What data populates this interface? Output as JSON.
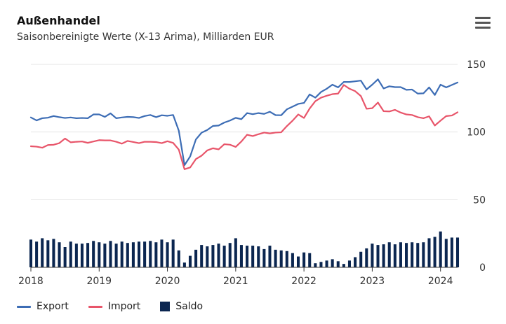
{
  "header": {
    "title": "Außenhandel",
    "subtitle": "Saisonbereinigte Werte (X-13 Arima), Milliarden EUR",
    "menu_icon": "hamburger-menu-icon"
  },
  "legend": {
    "export_label": "Export",
    "import_label": "Import",
    "saldo_label": "Saldo"
  },
  "colors": {
    "export": "#3d6db5",
    "import": "#e8556a",
    "saldo": "#0b2650",
    "grid": "#e4e4e4",
    "axis": "#333333"
  },
  "chart_data": {
    "type": "line",
    "x_start": "2018-01",
    "x_end": "2024-04",
    "x_unit": "month",
    "xticks": [
      "2018",
      "2019",
      "2020",
      "2021",
      "2022",
      "2023",
      "2024"
    ],
    "yticks": [
      0,
      50,
      100,
      150
    ],
    "ylim": [
      0,
      150
    ],
    "y_axis_side": "right",
    "grid": true,
    "legend_position": "bottom-left",
    "title": "Außenhandel",
    "subtitle": "Saisonbereinigte Werte (X-13 Arima), Milliarden EUR",
    "series": [
      {
        "name": "Export",
        "type": "line",
        "values": [
          110.8,
          108.6,
          110.2,
          110.6,
          111.8,
          111.0,
          110.4,
          110.8,
          110.2,
          110.4,
          110.2,
          113.0,
          113.0,
          111.2,
          113.8,
          110.2,
          110.8,
          111.2,
          111.0,
          110.4,
          111.8,
          112.6,
          111.0,
          112.4,
          112.0,
          112.6,
          101.0,
          75.5,
          82.0,
          94.5,
          99.5,
          101.5,
          104.5,
          104.8,
          107.0,
          108.5,
          110.5,
          109.5,
          114.0,
          113.2,
          114.0,
          113.4,
          115.0,
          112.5,
          112.4,
          116.8,
          118.8,
          120.8,
          121.5,
          127.8,
          125.4,
          129.6,
          132.0,
          135.0,
          133.0,
          137.0,
          137.0,
          137.5,
          138.0,
          131.5,
          135.0,
          139.0,
          132.2,
          133.8,
          133.2,
          133.2,
          131.2,
          131.4,
          128.4,
          128.6,
          133.0,
          127.4,
          135.0,
          133.0,
          134.8,
          136.6
        ]
      },
      {
        "name": "Import",
        "type": "line",
        "values": [
          89.5,
          89.2,
          88.4,
          90.4,
          90.6,
          91.8,
          95.2,
          92.4,
          92.8,
          93.0,
          92.0,
          93.0,
          94.0,
          93.8,
          93.8,
          92.8,
          91.4,
          93.4,
          92.6,
          91.8,
          92.8,
          92.8,
          92.6,
          91.8,
          93.2,
          92.0,
          87.0,
          72.5,
          73.8,
          80.0,
          82.5,
          86.4,
          88.0,
          87.2,
          91.0,
          90.6,
          89.0,
          93.0,
          98.0,
          97.0,
          98.4,
          99.6,
          99.0,
          99.6,
          99.8,
          104.4,
          108.4,
          113.0,
          110.4,
          117.4,
          122.8,
          125.4,
          126.8,
          128.0,
          128.4,
          134.8,
          132.0,
          130.2,
          126.6,
          117.2,
          117.6,
          121.8,
          115.4,
          115.2,
          116.4,
          114.4,
          113.0,
          112.6,
          111.0,
          110.2,
          111.6,
          104.8,
          108.4,
          111.8,
          112.2,
          114.6
        ]
      },
      {
        "name": "Saldo",
        "type": "bar",
        "values": [
          20.5,
          19.0,
          21.5,
          20.0,
          21.0,
          18.5,
          15.0,
          19.0,
          17.5,
          17.5,
          18.0,
          19.5,
          18.5,
          17.5,
          19.5,
          17.5,
          19.0,
          18.0,
          18.5,
          19.0,
          19.0,
          19.5,
          18.5,
          20.5,
          18.5,
          20.5,
          12.5,
          3.5,
          8.5,
          13.0,
          16.5,
          15.5,
          16.5,
          17.5,
          16.0,
          18.0,
          21.5,
          16.5,
          16.0,
          16.0,
          15.5,
          13.5,
          16.0,
          13.0,
          12.5,
          12.0,
          10.5,
          8.0,
          11.0,
          10.5,
          3.0,
          4.0,
          5.0,
          6.0,
          4.5,
          2.5,
          5.0,
          7.5,
          11.5,
          14.0,
          17.5,
          16.5,
          17.0,
          18.5,
          17.0,
          18.5,
          18.0,
          18.5,
          18.0,
          18.5,
          21.5,
          22.5,
          26.5,
          21.0,
          22.0,
          22.0
        ]
      }
    ]
  }
}
